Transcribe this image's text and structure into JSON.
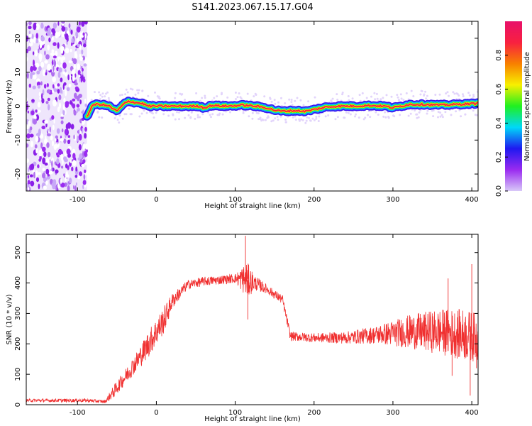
{
  "title": "S141.2023.067.15.17.G04",
  "chart_data": [
    {
      "type": "heatmap",
      "xlabel": "Height of straight line (km)",
      "ylabel": "Frequency (Hz)",
      "xlim": [
        -165,
        408
      ],
      "ylim": [
        -25,
        25
      ],
      "xticks": [
        -100,
        0,
        100,
        200,
        300,
        400
      ],
      "yticks": [
        -20,
        -10,
        0,
        10,
        20
      ],
      "colorbar": {
        "label": "Normalized spectral amplitude",
        "range": [
          0,
          1
        ],
        "ticks": [
          "0.0",
          "0.2",
          "0.4",
          "0.6",
          "0.8"
        ],
        "colors": [
          "#d8c8f8",
          "#9a2bf0",
          "#1f18f0",
          "#00d8f8",
          "#20f020",
          "#f8f000",
          "#f88000",
          "#f82040",
          "#e8106a"
        ]
      },
      "noise_region_x": [
        -165,
        -88
      ],
      "ridge": {
        "description_free": true,
        "x": [
          -88,
          -80,
          -70,
          -60,
          -50,
          -42,
          -35,
          -25,
          -18,
          -10,
          0,
          20,
          40,
          55,
          60,
          70,
          90,
          110,
          125,
          140,
          150,
          160,
          175,
          190,
          200,
          215,
          230,
          250,
          270,
          290,
          300,
          320,
          340,
          360,
          380,
          408
        ],
        "y": [
          -3,
          0.5,
          0.5,
          0,
          -1.5,
          0.5,
          1.5,
          1,
          0.8,
          0,
          0,
          0,
          0,
          0,
          -0.5,
          0.2,
          0,
          0.3,
          0,
          -0.5,
          -1.2,
          -1.5,
          -1.3,
          -1.5,
          -1,
          -0.3,
          0,
          0,
          0.2,
          0,
          -0.5,
          0.5,
          0.5,
          0.3,
          0.5,
          0.8
        ]
      }
    },
    {
      "type": "line",
      "xlabel": "Height of straight line (km)",
      "ylabel": "SNR (10 * v/v)",
      "xlim": [
        -165,
        408
      ],
      "ylim": [
        0,
        560
      ],
      "xticks": [
        -100,
        0,
        100,
        200,
        300,
        400
      ],
      "yticks": [
        0,
        100,
        200,
        300,
        400,
        500
      ],
      "color": "#f03030",
      "envelope": {
        "x": [
          -165,
          -90,
          -65,
          -55,
          -40,
          -20,
          -10,
          0,
          10,
          20,
          40,
          60,
          80,
          100,
          115,
          125,
          140,
          160,
          170,
          200,
          240,
          280,
          320,
          360,
          390,
          408
        ],
        "mean": [
          14,
          14,
          10,
          40,
          90,
          160,
          200,
          240,
          280,
          340,
          395,
          405,
          410,
          415,
          410,
          400,
          380,
          345,
          225,
          220,
          220,
          230,
          240,
          240,
          230,
          220
        ],
        "amp": [
          5,
          6,
          5,
          20,
          25,
          35,
          45,
          45,
          45,
          25,
          15,
          15,
          15,
          15,
          60,
          25,
          15,
          15,
          15,
          15,
          20,
          30,
          55,
          75,
          85,
          80
        ]
      },
      "spikes": [
        {
          "x": 113,
          "y": 555
        },
        {
          "x": 116,
          "y": 280
        },
        {
          "x": 110,
          "y": 445
        },
        {
          "x": 400,
          "y": 462
        },
        {
          "x": 398,
          "y": 30
        },
        {
          "x": 406,
          "y": 120
        },
        {
          "x": 370,
          "y": 415
        },
        {
          "x": 375,
          "y": 95
        }
      ]
    }
  ]
}
